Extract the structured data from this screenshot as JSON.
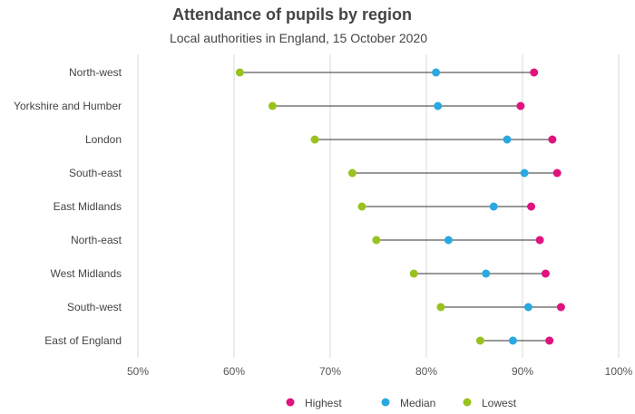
{
  "chart_data": {
    "type": "dumbbell",
    "title": "Attendance of pupils by region",
    "subtitle": "Local authorities in England, 15 October 2020",
    "xlabel": "",
    "ylabel": "",
    "xlim": [
      50,
      100
    ],
    "x_ticks": [
      50,
      60,
      70,
      80,
      90,
      100
    ],
    "x_tick_labels": [
      "50%",
      "60%",
      "70%",
      "80%",
      "90%",
      "100%"
    ],
    "grid": true,
    "legend_position": "bottom",
    "categories": [
      "North-west",
      "Yorkshire and Humber",
      "London",
      "South-east",
      "East Midlands",
      "North-east",
      "West Midlands",
      "South-west",
      "East of England"
    ],
    "series": [
      {
        "name": "Highest",
        "color": "#e0137f",
        "values": [
          91.2,
          89.8,
          93.1,
          93.6,
          90.9,
          91.8,
          92.4,
          94.0,
          92.8
        ]
      },
      {
        "name": "Median",
        "color": "#29a9e0",
        "values": [
          81.0,
          81.2,
          88.4,
          90.2,
          87.0,
          82.3,
          86.2,
          90.6,
          89.0
        ]
      },
      {
        "name": "Lowest",
        "color": "#99c21f",
        "values": [
          60.6,
          64.0,
          68.4,
          72.3,
          73.3,
          74.8,
          78.7,
          81.5,
          85.6
        ]
      }
    ]
  }
}
